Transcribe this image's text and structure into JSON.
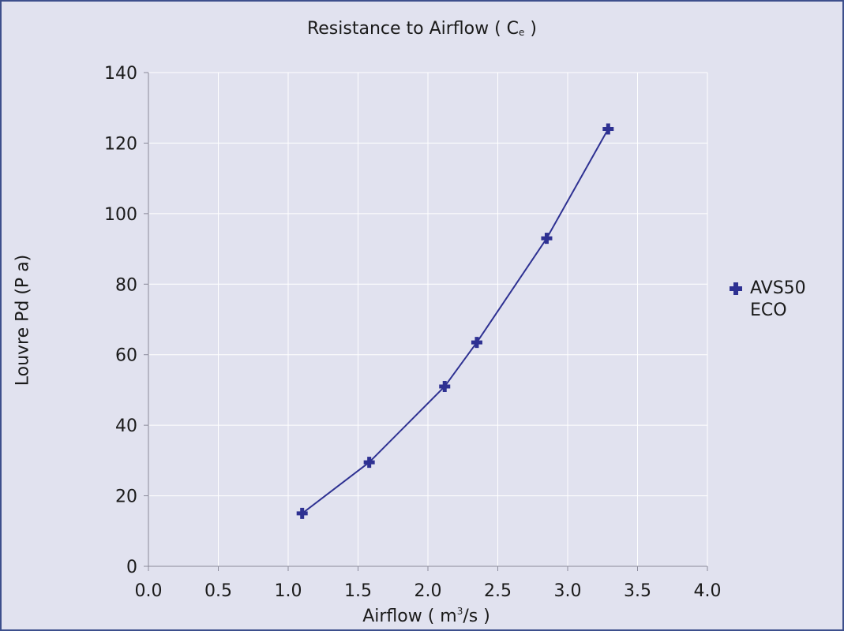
{
  "chart_data": {
    "type": "line",
    "title": {
      "prefix": "Resistance to Airflow  ( C",
      "subscript": "e",
      "suffix": " )"
    },
    "xlabel": {
      "prefix": "Airflow  ( m",
      "superscript": "3",
      "suffix": "/s )"
    },
    "ylabel": "Louvre Pd (P a)",
    "xlim": [
      0,
      4
    ],
    "ylim": [
      0,
      140
    ],
    "x_ticks": [
      "0.0",
      "0.5",
      "1.0",
      "1.5",
      "2.0",
      "2.5",
      "3.0",
      "3.5",
      "4.0"
    ],
    "y_ticks": [
      "0",
      "20",
      "40",
      "60",
      "80",
      "100",
      "120",
      "140"
    ],
    "grid": true,
    "legend_position": "right",
    "series": [
      {
        "name": "AVS50 ECO",
        "color": "#2e3192",
        "marker": "plus",
        "x": [
          1.1,
          1.58,
          2.12,
          2.35,
          2.85,
          3.29
        ],
        "y": [
          15,
          29.5,
          51,
          63.5,
          93,
          124
        ]
      }
    ]
  },
  "colors": {
    "plot_background": "#e1e2ef",
    "frame_border": "#3d4f8c",
    "grid": "#ffffff",
    "series": "#2e3192"
  }
}
